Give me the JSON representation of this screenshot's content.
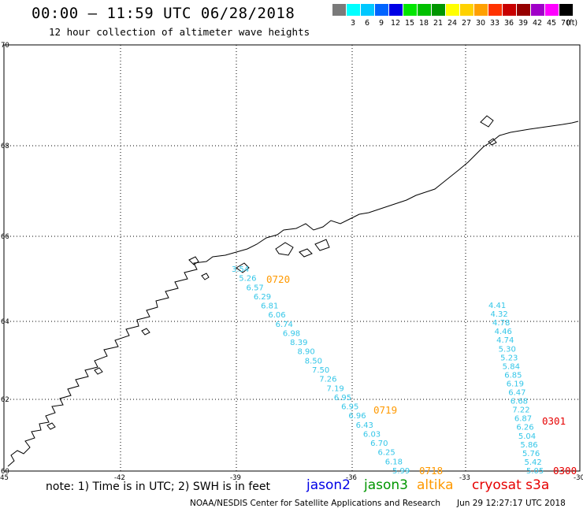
{
  "header": {
    "title": "00:00 – 11:59 UTC 06/28/2018",
    "subtitle": "12 hour collection of altimeter wave heights"
  },
  "legend": {
    "unit": "(ft)",
    "items": [
      {
        "label": "",
        "color": "#7a7a7a"
      },
      {
        "label": "3",
        "color": "#00ffff"
      },
      {
        "label": "6",
        "color": "#00c8ff"
      },
      {
        "label": "9",
        "color": "#0064ff"
      },
      {
        "label": "12",
        "color": "#0000e6"
      },
      {
        "label": "15",
        "color": "#00e600"
      },
      {
        "label": "18",
        "color": "#00c000"
      },
      {
        "label": "21",
        "color": "#009600"
      },
      {
        "label": "24",
        "color": "#ffff00"
      },
      {
        "label": "27",
        "color": "#ffd200"
      },
      {
        "label": "30",
        "color": "#ffa000"
      },
      {
        "label": "33",
        "color": "#ff3200"
      },
      {
        "label": "36",
        "color": "#c80000"
      },
      {
        "label": "39",
        "color": "#960000"
      },
      {
        "label": "42",
        "color": "#a000c8"
      },
      {
        "label": "45",
        "color": "#ff00ff"
      },
      {
        "label": "70",
        "color": "#000000"
      }
    ]
  },
  "map": {
    "lat_labels": [
      "70",
      "68",
      "66",
      "64",
      "62",
      "60"
    ],
    "lon_labels": [
      "-45",
      "-42",
      "-39",
      "-36",
      "-33",
      "-30"
    ]
  },
  "track_a": {
    "color": "#33c6e8",
    "values": [
      "3.54",
      "5.26",
      "6.57",
      "6.29",
      "6.81",
      "6.06",
      "6.74",
      "6.98",
      "8.39",
      "8.90",
      "8.50",
      "7.50",
      "7.26",
      "7.19",
      "6.95",
      "6.95",
      "6.96",
      "6.43",
      "6.03",
      "6.70",
      "6.25",
      "6.18",
      "5.99"
    ]
  },
  "track_b": {
    "color": "#33c6e8",
    "values": [
      "4.41",
      "4.32",
      "4.78",
      "4.46",
      "4.74",
      "5.30",
      "5.23",
      "5.84",
      "6.85",
      "6.19",
      "6.47",
      "6.68",
      "7.22",
      "6.87",
      "6.26",
      "5.04",
      "5.86",
      "5.76",
      "5.42",
      "5.05"
    ]
  },
  "times": [
    {
      "label": "0720",
      "color": "#ff9900"
    },
    {
      "label": "0719",
      "color": "#ff9900"
    },
    {
      "label": "0718",
      "color": "#ff9900"
    },
    {
      "label": "0301",
      "color": "#e60000"
    },
    {
      "label": "0300",
      "color": "#e60000"
    }
  ],
  "note": "note:  1) Time is in UTC;  2) SWH is in feet",
  "satellites": [
    {
      "name": "jason2",
      "color": "#0000e6"
    },
    {
      "name": "jason3",
      "color": "#009600"
    },
    {
      "name": "altika",
      "color": "#ff9900"
    },
    {
      "name": "cryosat s3a",
      "color": "#e60000"
    }
  ],
  "footer": {
    "credit": "NOAA/NESDIS Center for Satellite Applications and Research",
    "timestamp": "Jun 29 12:27:17 UTC 2018"
  }
}
